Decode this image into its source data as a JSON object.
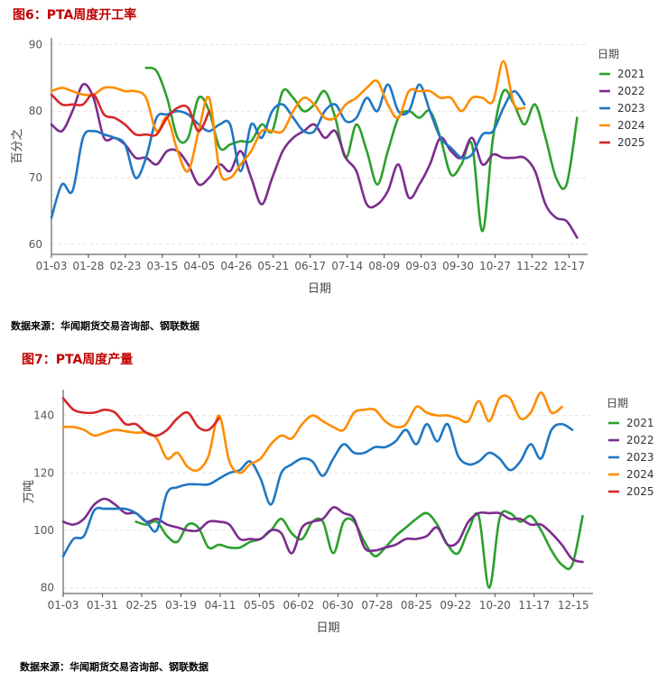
{
  "chart_data": [
    {
      "type": "line",
      "title": "图6：PTA周度开工率",
      "source": "数据来源：华闻期货交易咨询部、钢联数据",
      "xlabel": "日期",
      "ylabel": "百分之",
      "x_ticks": [
        "01-03",
        "01-28",
        "02-23",
        "03-15",
        "04-05",
        "04-26",
        "05-21",
        "06-17",
        "07-14",
        "08-09",
        "09-03",
        "09-30",
        "10-27",
        "11-22",
        "12-17"
      ],
      "y_ticks": [
        60,
        70,
        80,
        90
      ],
      "ylim": [
        58.5,
        91
      ],
      "xlim": [
        0,
        51
      ],
      "grid": "horizontal dashed",
      "legend_title": "日期",
      "legend_position": "right",
      "series": [
        {
          "name": "2021",
          "color": "#2ca02c",
          "values": [
            null,
            null,
            null,
            null,
            null,
            null,
            null,
            null,
            null,
            86.5,
            86,
            82,
            76,
            76,
            82,
            80,
            74.5,
            75,
            75.5,
            75.5,
            78,
            77,
            83,
            82,
            80,
            81,
            83,
            79,
            73,
            78,
            74,
            69,
            74,
            79,
            80,
            79,
            80,
            76,
            70.5,
            72,
            75,
            62,
            76,
            83,
            81,
            78,
            81,
            76,
            70,
            69,
            79
          ]
        },
        {
          "name": "2022",
          "color": "#7b2d8e",
          "values": [
            78,
            77,
            80,
            84,
            82,
            76,
            76,
            75,
            73,
            73,
            72,
            74,
            74,
            72,
            69,
            70,
            72,
            71,
            74,
            70,
            66,
            70,
            74,
            76,
            77,
            78,
            76,
            77,
            73,
            71,
            66,
            66,
            68,
            72,
            67,
            69,
            72,
            76,
            74,
            73,
            76,
            72,
            73.5,
            73,
            73,
            73,
            71,
            66,
            64,
            63.5,
            61
          ]
        },
        {
          "name": "2023",
          "color": "#1f77c4",
          "values": [
            64,
            69,
            68,
            76,
            77,
            76.5,
            76,
            75,
            70,
            73,
            79,
            79.5,
            80,
            79.5,
            78,
            77,
            78,
            78,
            71,
            78,
            76,
            80,
            81,
            79,
            77,
            77,
            80,
            81,
            78.5,
            79,
            82,
            80,
            84,
            80,
            80,
            84,
            80,
            76,
            74.5,
            73,
            73.5,
            76.5,
            77,
            80.5,
            83,
            81
          ]
        },
        {
          "name": "2024",
          "color": "#ff8c00",
          "values": [
            83,
            83.5,
            83,
            82.5,
            82.5,
            83.5,
            83.5,
            83,
            83,
            82,
            77,
            79,
            74,
            71,
            77,
            82,
            71,
            70,
            72,
            74,
            77,
            77,
            77,
            80,
            82,
            81,
            79,
            79,
            81,
            82,
            83.5,
            84.5,
            81,
            79,
            83,
            83,
            83,
            82,
            82,
            80,
            82,
            82,
            81.5,
            87.5,
            81,
            80.5
          ]
        },
        {
          "name": "2025",
          "color": "#d62728",
          "values": [
            82.5,
            81,
            81,
            81,
            82.5,
            79.5,
            79,
            78,
            76.5,
            76.5,
            76.5,
            79,
            80.5,
            80.5,
            77,
            80
          ]
        }
      ]
    },
    {
      "type": "line",
      "title": "图7：PTA周度产量",
      "source": "数据来源：华闻期货交易咨询部、钢联数据",
      "xlabel": "日期",
      "ylabel": "万吨",
      "x_ticks": [
        "01-03",
        "01-31",
        "02-25",
        "03-19",
        "04-11",
        "05-05",
        "06-02",
        "06-30",
        "07-28",
        "08-25",
        "09-22",
        "10-20",
        "11-17",
        "12-15"
      ],
      "y_ticks": [
        80,
        100,
        120,
        140
      ],
      "ylim": [
        78,
        149
      ],
      "xlim": [
        0,
        51
      ],
      "grid": "horizontal dashed",
      "legend_title": "日期",
      "legend_position": "right",
      "series": [
        {
          "name": "2021",
          "color": "#2ca02c",
          "values": [
            null,
            null,
            null,
            null,
            null,
            null,
            null,
            103,
            102,
            103,
            98,
            96,
            102,
            101,
            94,
            95,
            94,
            94,
            96,
            97,
            100,
            104,
            99,
            97,
            103,
            103,
            92,
            103,
            103,
            96,
            91,
            94,
            98,
            101,
            104,
            106,
            102,
            95,
            92,
            100,
            105,
            80,
            104,
            106,
            103,
            105,
            100,
            93,
            88,
            88,
            105
          ]
        },
        {
          "name": "2022",
          "color": "#7b2d8e",
          "values": [
            103,
            102,
            104,
            109,
            111,
            109,
            106,
            106,
            103,
            104,
            102,
            101,
            100,
            100,
            103,
            103,
            102,
            97,
            97,
            97,
            100,
            99,
            92,
            101,
            103,
            104,
            108,
            106,
            104,
            94,
            93,
            94,
            95,
            97,
            97,
            98,
            101,
            95,
            96,
            103,
            106,
            106,
            106,
            104,
            104,
            102,
            102,
            99,
            95,
            90,
            89
          ]
        },
        {
          "name": "2023",
          "color": "#1f77c4",
          "values": [
            91,
            97,
            98,
            107,
            107.5,
            107.5,
            107.5,
            106,
            103,
            100,
            113,
            115,
            116,
            116,
            116,
            118,
            120,
            121,
            124,
            118,
            109,
            120,
            123,
            125,
            124,
            119,
            125,
            130,
            127,
            127,
            129,
            129,
            131,
            135,
            130,
            137,
            131,
            137,
            126,
            123,
            124,
            127,
            125,
            121,
            124,
            130,
            125,
            135,
            137,
            135
          ]
        },
        {
          "name": "2024",
          "color": "#ff8c00",
          "values": [
            136,
            136,
            135,
            133,
            134,
            135,
            134.5,
            134,
            134,
            132,
            125,
            127,
            122,
            121,
            126,
            140,
            124,
            120,
            123,
            125,
            130,
            133,
            132,
            137,
            140,
            138,
            136,
            135,
            141,
            142,
            142,
            138,
            136,
            137,
            143,
            141,
            140,
            140,
            139,
            138,
            145,
            138,
            146,
            146,
            139,
            141,
            148,
            141,
            143
          ]
        },
        {
          "name": "2025",
          "color": "#d62728",
          "values": [
            146,
            142,
            141,
            141,
            142,
            141,
            137,
            137,
            134,
            133,
            135,
            139,
            141,
            136,
            135,
            139
          ]
        }
      ]
    }
  ]
}
